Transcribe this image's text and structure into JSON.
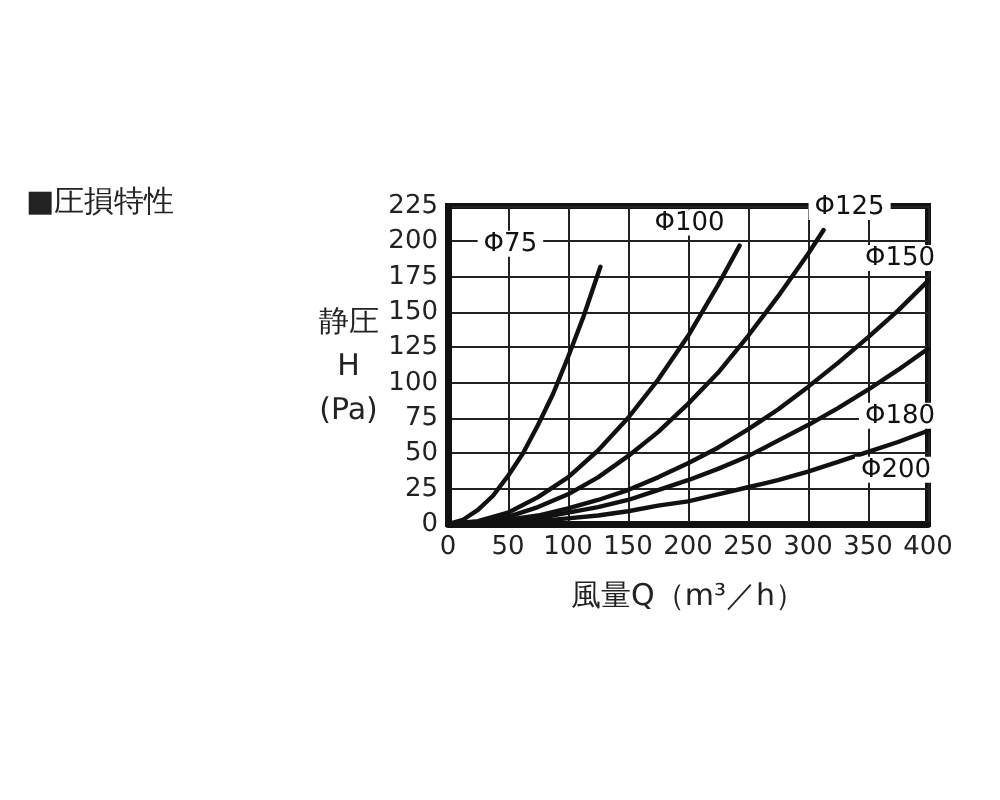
{
  "chart_data": {
    "type": "line",
    "title": "■圧損特性",
    "xlabel": "風量Q（m³／h）",
    "ylabel": "静圧\nH\n(Pa)",
    "xlim": [
      0,
      400
    ],
    "xticks": [
      0,
      50,
      100,
      150,
      200,
      250,
      300,
      350,
      400
    ],
    "ylim": [
      0,
      225
    ],
    "yticks": [
      0,
      25,
      50,
      75,
      100,
      125,
      150,
      175,
      200,
      225
    ],
    "grid": true,
    "legend": false,
    "marker": "none",
    "line_style": "solid",
    "series": [
      {
        "name": "Φ75",
        "color": "#111111",
        "x": [
          0,
          12.5,
          25,
          37.5,
          50,
          62.5,
          75,
          87.5,
          100,
          113,
          127
        ],
        "values": [
          0,
          3,
          10,
          20,
          34,
          50,
          70,
          92,
          118,
          147,
          182
        ]
      },
      {
        "name": "Φ100",
        "color": "#111111",
        "x": [
          0,
          25,
          50,
          75,
          100,
          125,
          150,
          175,
          200,
          225,
          243
        ],
        "values": [
          0,
          2,
          8,
          19,
          33,
          52,
          75,
          102,
          133,
          169,
          197
        ]
      },
      {
        "name": "Φ125",
        "color": "#111111",
        "x": [
          0,
          25,
          50,
          75,
          100,
          125,
          150,
          175,
          200,
          225,
          250,
          275,
          300,
          313
        ],
        "values": [
          0,
          1,
          5,
          12,
          21,
          33,
          48,
          65,
          85,
          107,
          133,
          161,
          191,
          208
        ]
      },
      {
        "name": "Φ150",
        "color": "#111111",
        "x": [
          0,
          25,
          50,
          75,
          100,
          125,
          150,
          175,
          200,
          225,
          250,
          275,
          300,
          325,
          350,
          375,
          400
        ],
        "values": [
          0,
          1,
          3,
          6,
          11,
          17,
          24,
          33,
          43,
          54,
          67,
          81,
          97,
          114,
          132,
          151,
          172
        ]
      },
      {
        "name": "Φ180",
        "color": "#111111",
        "x": [
          0,
          25,
          50,
          75,
          100,
          125,
          150,
          175,
          200,
          225,
          250,
          275,
          300,
          325,
          350,
          375,
          400
        ],
        "values": [
          0,
          1,
          2,
          4,
          8,
          12,
          17,
          24,
          31,
          39,
          48,
          59,
          70,
          82,
          95,
          109,
          124
        ]
      },
      {
        "name": "Φ200",
        "color": "#111111",
        "x": [
          0,
          25,
          50,
          75,
          100,
          125,
          150,
          175,
          200,
          225,
          250,
          275,
          300,
          325,
          350,
          375,
          400
        ],
        "values": [
          0,
          0,
          1,
          2,
          4,
          6,
          9,
          13,
          16,
          21,
          26,
          31,
          37,
          44,
          51,
          58,
          66
        ]
      }
    ]
  }
}
